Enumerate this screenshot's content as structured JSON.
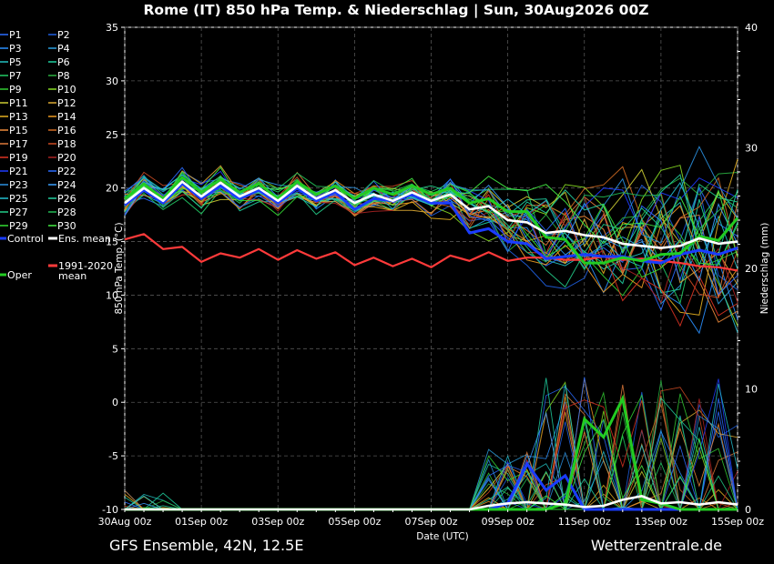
{
  "chart_data": {
    "type": "line",
    "title": "Rome  (IT)  850 hPa Temp. & Niederschlag | Sun, 30Aug2026 00Z",
    "xlabel": "Date (UTC)",
    "ylabel": "850 hPa Temp. (°C)",
    "y2label": "Niederschlag (mm)",
    "ylim": [
      -10,
      35
    ],
    "y2lim": [
      0,
      40
    ],
    "yticks": [
      -10,
      -5,
      0,
      5,
      10,
      15,
      20,
      25,
      30,
      35
    ],
    "y2ticks": [
      0,
      10,
      20,
      30,
      40
    ],
    "xlim": [
      "2026-08-30 00",
      "2026-09-15 00"
    ],
    "xticks": [
      "30Aug 00z",
      "01Sep 00z",
      "03Sep 00z",
      "05Sep 00z",
      "07Sep 00z",
      "09Sep 00z",
      "11Sep 00z",
      "13Sep 00z",
      "15Sep 00z"
    ],
    "grid": true,
    "legend_position": "left",
    "legend_members": [
      "P1",
      "P2",
      "P3",
      "P4",
      "P5",
      "P6",
      "P7",
      "P8",
      "P9",
      "P10",
      "P11",
      "P12",
      "P13",
      "P14",
      "P15",
      "P16",
      "P17",
      "P18",
      "P19",
      "P20",
      "P21",
      "P22",
      "P23",
      "P24",
      "P25",
      "P26",
      "P27",
      "P28",
      "P29",
      "P30"
    ],
    "legend_special": [
      "Control",
      "Ens. mean",
      "1991-2020 mean",
      "Oper"
    ],
    "series": [
      {
        "name": "Ens. mean",
        "color": "#ffffff",
        "axis": "temp",
        "values": [
          18.6,
          20.0,
          18.8,
          20.6,
          19.2,
          20.5,
          19.2,
          20.0,
          18.8,
          20.2,
          19.0,
          19.8,
          18.6,
          19.4,
          18.8,
          19.6,
          18.8,
          19.4,
          18.0,
          18.3,
          17.0,
          16.8,
          15.8,
          16.0,
          15.6,
          15.4,
          14.8,
          14.6,
          14.4,
          14.6,
          15.3,
          14.8,
          15.0
        ]
      },
      {
        "name": "Oper",
        "color": "#22cc22",
        "axis": "temp",
        "values": [
          19.0,
          20.4,
          19.0,
          21.0,
          19.6,
          20.8,
          19.6,
          20.4,
          19.0,
          20.6,
          19.4,
          20.2,
          19.0,
          20.0,
          19.4,
          20.2,
          19.4,
          20.0,
          18.6,
          19.0,
          17.8,
          17.8,
          15.4,
          15.2,
          13.0,
          13.0,
          13.5,
          13.2,
          13.8,
          13.9,
          15.5,
          15.1,
          17.2
        ]
      },
      {
        "name": "Control",
        "color": "#1a3cff",
        "axis": "temp",
        "values": [
          18.4,
          19.8,
          18.6,
          20.4,
          19.0,
          20.2,
          19.0,
          19.8,
          18.6,
          20.0,
          18.8,
          19.6,
          18.0,
          19.0,
          18.8,
          19.4,
          18.6,
          18.6,
          15.8,
          16.2,
          15.0,
          14.8,
          13.4,
          13.6,
          13.8,
          13.6,
          13.6,
          13.2,
          13.0,
          13.8,
          14.2,
          13.8,
          14.4
        ]
      },
      {
        "name": "1991-2020 mean",
        "color": "#ff3a3a",
        "axis": "temp",
        "values": [
          15.2,
          15.7,
          14.3,
          14.5,
          13.1,
          13.9,
          13.5,
          14.3,
          13.3,
          14.2,
          13.4,
          14.0,
          12.8,
          13.5,
          12.7,
          13.4,
          12.6,
          13.7,
          13.2,
          14.0,
          13.2,
          13.5,
          13.5,
          13.3,
          13.3,
          13.6,
          13.3,
          13.4,
          13.2,
          13.0,
          12.7,
          12.6,
          12.3
        ]
      },
      {
        "name": "Control",
        "color": "#1a3cff",
        "axis": "precip",
        "values": [
          0,
          0,
          0,
          0,
          0,
          0,
          0,
          0,
          0,
          0,
          0,
          0,
          0,
          0,
          0,
          0,
          0,
          0,
          0,
          0,
          0.5,
          3.8,
          1.6,
          2.8,
          0,
          0,
          0,
          0,
          0,
          0,
          0,
          0,
          0
        ]
      },
      {
        "name": "Oper",
        "color": "#22cc22",
        "axis": "precip",
        "values": [
          0,
          0,
          0,
          0,
          0,
          0,
          0,
          0,
          0,
          0,
          0,
          0,
          0,
          0,
          0,
          0,
          0,
          0,
          0,
          0,
          0,
          0,
          0,
          0.5,
          7.5,
          6.0,
          9.2,
          0.8,
          0.5,
          0,
          0,
          0,
          0
        ]
      },
      {
        "name": "Ens. mean",
        "color": "#ffffff",
        "axis": "precip",
        "values": [
          0,
          0,
          0,
          0,
          0,
          0,
          0,
          0,
          0,
          0,
          0,
          0,
          0,
          0,
          0,
          0,
          0,
          0,
          0,
          0.3,
          0.5,
          0.6,
          0.5,
          0.4,
          0.2,
          0.3,
          0.8,
          1.1,
          0.5,
          0.6,
          0.4,
          0.6,
          0.4
        ]
      }
    ]
  },
  "footer": {
    "left": "GFS Ensemble, 42N, 12.5E",
    "right": "Wetterzentrale.de"
  },
  "colors": {
    "members": [
      "#2a6cff",
      "#1f5fe0",
      "#2a90ff",
      "#2aa0e0",
      "#22c0c0",
      "#1fd0a0",
      "#22cc66",
      "#2ab040",
      "#33cc33",
      "#88dd22",
      "#cccc33",
      "#ddaa33",
      "#e6b020",
      "#ee9a22",
      "#ee8a3a",
      "#d06a22",
      "#e07a3a",
      "#cc4a22",
      "#dd3322",
      "#aa2222",
      "#1f3cff",
      "#2a6cff",
      "#2a90e0",
      "#3aa0ff",
      "#22c0d0",
      "#22d0a0",
      "#22cc88",
      "#22bb55",
      "#33dd33",
      "#44ee44"
    ]
  }
}
